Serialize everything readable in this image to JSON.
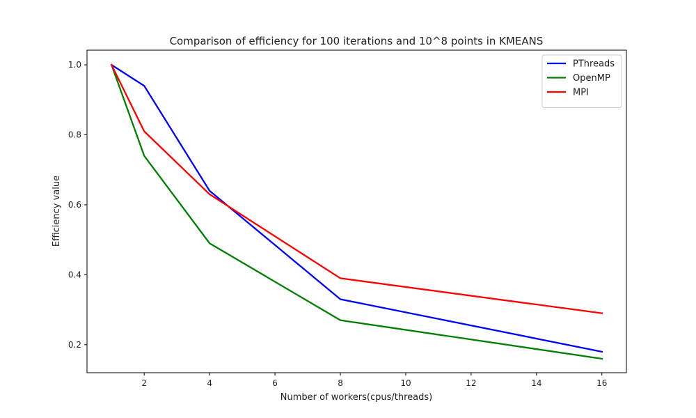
{
  "chart_data": {
    "type": "line",
    "title": "Comparison of efficiency for 100 iterations and 10^8 points in KMEANS",
    "xlabel": "Number of workers(cpus/threads)",
    "ylabel": "Efficiency value",
    "x": [
      1,
      2,
      4,
      8,
      16
    ],
    "xlim": [
      0.25,
      16.75
    ],
    "ylim": [
      0.12,
      1.042
    ],
    "xticks": [
      2,
      4,
      6,
      8,
      10,
      12,
      14,
      16
    ],
    "yticks": [
      0.2,
      0.4,
      0.6,
      0.8,
      1.0
    ],
    "ytick_labels": [
      "0.2",
      "0.4",
      "0.6",
      "0.8",
      "1.0"
    ],
    "grid": false,
    "legend_position": "top-right",
    "series": [
      {
        "name": "PThreads",
        "color": "#0000ff",
        "values": [
          1.0,
          0.94,
          0.64,
          0.33,
          0.18
        ]
      },
      {
        "name": "OpenMP",
        "color": "#008000",
        "values": [
          1.0,
          0.74,
          0.49,
          0.27,
          0.16
        ]
      },
      {
        "name": "MPI",
        "color": "#ff0000",
        "values": [
          1.0,
          0.81,
          0.63,
          0.39,
          0.29
        ]
      }
    ]
  }
}
